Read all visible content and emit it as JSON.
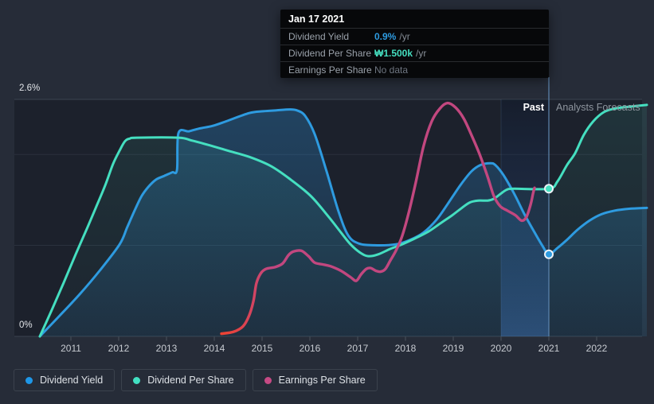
{
  "tooltip": {
    "date": "Jan 17 2021",
    "rows": [
      {
        "label": "Dividend Yield",
        "value": "0.9%",
        "suffix": "/yr",
        "color": "#2e9be0"
      },
      {
        "label": "Dividend Per Share",
        "value": "₩1.500k",
        "suffix": "/yr",
        "color": "#45dfc0"
      },
      {
        "label": "Earnings Per Share",
        "value": "No data",
        "suffix": "",
        "color": "#6e7580"
      }
    ]
  },
  "axis": {
    "y_top_label": "2.6%",
    "y_bottom_label": "0%"
  },
  "zones": {
    "past_label": "Past",
    "forecast_label": "Analysts Forecasts"
  },
  "legend": [
    {
      "label": "Dividend Yield",
      "color": "#1e97e8"
    },
    {
      "label": "Dividend Per Share",
      "color": "#42e0c2"
    },
    {
      "label": "Earnings Per Share",
      "color": "#c64a84"
    }
  ],
  "chart_data": {
    "type": "line",
    "title": "",
    "x_axis": {
      "unit": "year",
      "ticks": [
        2011,
        2012,
        2013,
        2014,
        2015,
        2016,
        2017,
        2018,
        2019,
        2020,
        2021,
        2022
      ]
    },
    "y_axis": {
      "min": 0,
      "max": 2.6,
      "unit": "%",
      "labels": [
        "0%",
        "2.6%"
      ],
      "gridlines_at": [
        0,
        1.0,
        2.0,
        2.6
      ]
    },
    "today": {
      "year": 2021.0,
      "date_label": "Jan 17 2021"
    },
    "highlight_band": {
      "from": 2020.0,
      "to": 2021.0
    },
    "legend_position": "bottom-left",
    "series": [
      {
        "name": "Dividend Yield",
        "color": "#2e9be0",
        "fill": true,
        "marker_at": [
          2021.0,
          0.9
        ],
        "points": [
          [
            2010.35,
            0
          ],
          [
            2010.77,
            0.23
          ],
          [
            2011.18,
            0.46
          ],
          [
            2011.6,
            0.72
          ],
          [
            2012.02,
            1.01
          ],
          [
            2012.18,
            1.2
          ],
          [
            2012.35,
            1.4
          ],
          [
            2012.48,
            1.54
          ],
          [
            2012.62,
            1.64
          ],
          [
            2012.78,
            1.72
          ],
          [
            2012.95,
            1.76
          ],
          [
            2013.12,
            1.8
          ],
          [
            2013.22,
            1.83
          ],
          [
            2013.25,
            2.23
          ],
          [
            2013.47,
            2.25
          ],
          [
            2013.68,
            2.28
          ],
          [
            2013.97,
            2.31
          ],
          [
            2014.25,
            2.36
          ],
          [
            2014.73,
            2.45
          ],
          [
            2015.02,
            2.47
          ],
          [
            2015.3,
            2.48
          ],
          [
            2015.57,
            2.49
          ],
          [
            2015.73,
            2.48
          ],
          [
            2015.9,
            2.42
          ],
          [
            2016.1,
            2.22
          ],
          [
            2016.35,
            1.81
          ],
          [
            2016.6,
            1.37
          ],
          [
            2016.8,
            1.11
          ],
          [
            2017.02,
            1.02
          ],
          [
            2017.35,
            1.0
          ],
          [
            2017.8,
            1.01
          ],
          [
            2018.1,
            1.06
          ],
          [
            2018.38,
            1.14
          ],
          [
            2018.65,
            1.28
          ],
          [
            2018.88,
            1.45
          ],
          [
            2019.15,
            1.66
          ],
          [
            2019.38,
            1.81
          ],
          [
            2019.57,
            1.88
          ],
          [
            2019.77,
            1.9
          ],
          [
            2019.88,
            1.88
          ],
          [
            2020.05,
            1.77
          ],
          [
            2020.27,
            1.57
          ],
          [
            2020.48,
            1.35
          ],
          [
            2020.68,
            1.16
          ],
          [
            2020.87,
            0.99
          ],
          [
            2021.0,
            0.9
          ],
          [
            2021.18,
            0.97
          ],
          [
            2021.38,
            1.06
          ],
          [
            2021.6,
            1.17
          ],
          [
            2021.85,
            1.27
          ],
          [
            2022.1,
            1.34
          ],
          [
            2022.38,
            1.38
          ],
          [
            2022.68,
            1.4
          ],
          [
            2023.05,
            1.41
          ]
        ]
      },
      {
        "name": "Dividend Per Share",
        "color": "#45dfc0",
        "fill": true,
        "marker_at": [
          2021.0,
          1.62
        ],
        "points": [
          [
            2010.35,
            0
          ],
          [
            2010.6,
            0.29
          ],
          [
            2010.85,
            0.59
          ],
          [
            2011.1,
            0.9
          ],
          [
            2011.35,
            1.2
          ],
          [
            2011.52,
            1.41
          ],
          [
            2011.72,
            1.66
          ],
          [
            2011.88,
            1.89
          ],
          [
            2012.02,
            2.04
          ],
          [
            2012.13,
            2.14
          ],
          [
            2012.23,
            2.17
          ],
          [
            2012.38,
            2.18
          ],
          [
            2013.25,
            2.18
          ],
          [
            2013.52,
            2.15
          ],
          [
            2013.88,
            2.1
          ],
          [
            2014.27,
            2.04
          ],
          [
            2014.73,
            1.97
          ],
          [
            2015.18,
            1.87
          ],
          [
            2015.6,
            1.72
          ],
          [
            2016.02,
            1.54
          ],
          [
            2016.38,
            1.32
          ],
          [
            2016.65,
            1.14
          ],
          [
            2016.85,
            1.01
          ],
          [
            2017.05,
            0.92
          ],
          [
            2017.22,
            0.88
          ],
          [
            2017.43,
            0.9
          ],
          [
            2017.68,
            0.96
          ],
          [
            2017.93,
            1.01
          ],
          [
            2018.18,
            1.07
          ],
          [
            2018.48,
            1.15
          ],
          [
            2018.73,
            1.24
          ],
          [
            2018.98,
            1.33
          ],
          [
            2019.18,
            1.41
          ],
          [
            2019.35,
            1.47
          ],
          [
            2019.52,
            1.49
          ],
          [
            2019.72,
            1.49
          ],
          [
            2019.85,
            1.51
          ],
          [
            2019.98,
            1.56
          ],
          [
            2020.12,
            1.61
          ],
          [
            2020.27,
            1.62
          ],
          [
            2021.0,
            1.62
          ],
          [
            2021.18,
            1.7
          ],
          [
            2021.38,
            1.88
          ],
          [
            2021.55,
            2.01
          ],
          [
            2021.73,
            2.21
          ],
          [
            2021.93,
            2.36
          ],
          [
            2022.15,
            2.46
          ],
          [
            2022.38,
            2.5
          ],
          [
            2022.68,
            2.52
          ],
          [
            2023.05,
            2.54
          ]
        ]
      },
      {
        "name": "Earnings Per Share",
        "color": "#c2477f",
        "start_color": "#f0432f",
        "fill": false,
        "points": [
          [
            2014.15,
            0.03
          ],
          [
            2014.4,
            0.05
          ],
          [
            2014.6,
            0.11
          ],
          [
            2014.73,
            0.23
          ],
          [
            2014.82,
            0.39
          ],
          [
            2014.88,
            0.58
          ],
          [
            2014.97,
            0.69
          ],
          [
            2015.08,
            0.74
          ],
          [
            2015.27,
            0.76
          ],
          [
            2015.43,
            0.8
          ],
          [
            2015.55,
            0.89
          ],
          [
            2015.65,
            0.93
          ],
          [
            2015.82,
            0.94
          ],
          [
            2015.97,
            0.88
          ],
          [
            2016.1,
            0.81
          ],
          [
            2016.27,
            0.79
          ],
          [
            2016.43,
            0.77
          ],
          [
            2016.65,
            0.72
          ],
          [
            2016.85,
            0.65
          ],
          [
            2016.97,
            0.61
          ],
          [
            2017.07,
            0.68
          ],
          [
            2017.18,
            0.74
          ],
          [
            2017.27,
            0.75
          ],
          [
            2017.38,
            0.72
          ],
          [
            2017.48,
            0.71
          ],
          [
            2017.58,
            0.74
          ],
          [
            2017.68,
            0.83
          ],
          [
            2017.8,
            0.94
          ],
          [
            2017.93,
            1.1
          ],
          [
            2018.07,
            1.36
          ],
          [
            2018.22,
            1.7
          ],
          [
            2018.38,
            2.09
          ],
          [
            2018.55,
            2.36
          ],
          [
            2018.72,
            2.5
          ],
          [
            2018.88,
            2.56
          ],
          [
            2019.05,
            2.51
          ],
          [
            2019.22,
            2.39
          ],
          [
            2019.38,
            2.21
          ],
          [
            2019.55,
            2.0
          ],
          [
            2019.72,
            1.75
          ],
          [
            2019.85,
            1.54
          ],
          [
            2019.98,
            1.43
          ],
          [
            2020.13,
            1.38
          ],
          [
            2020.3,
            1.33
          ],
          [
            2020.43,
            1.27
          ],
          [
            2020.53,
            1.31
          ],
          [
            2020.62,
            1.45
          ],
          [
            2020.67,
            1.57
          ],
          [
            2020.7,
            1.63
          ]
        ]
      }
    ]
  }
}
